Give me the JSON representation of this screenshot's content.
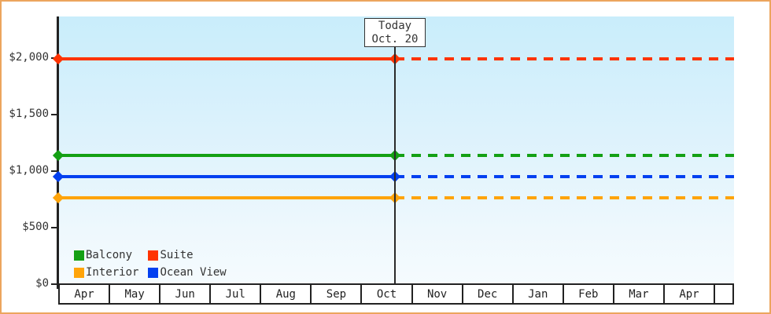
{
  "chart_data": {
    "type": "line",
    "title": "",
    "x_categories": [
      "Apr",
      "May",
      "Jun",
      "Jul",
      "Aug",
      "Sep",
      "Oct",
      "Nov",
      "Dec",
      "Jan",
      "Feb",
      "Mar",
      "Apr"
    ],
    "y_ticks": [
      {
        "label": "$0",
        "value": 0
      },
      {
        "label": "$500",
        "value": 500
      },
      {
        "label": "$1,000",
        "value": 1000
      },
      {
        "label": "$1,500",
        "value": 1500
      },
      {
        "label": "$2,000",
        "value": 2000
      }
    ],
    "ylim": [
      0,
      2360
    ],
    "grid": "off",
    "series": [
      {
        "name": "Suite",
        "color": "#ff3300",
        "value": 1990,
        "style": "solid-then-dashed"
      },
      {
        "name": "Balcony",
        "color": "#14a014",
        "value": 1140,
        "style": "solid-then-dashed"
      },
      {
        "name": "Ocean View",
        "color": "#0340f0",
        "value": 950,
        "style": "solid-then-dashed"
      },
      {
        "name": "Interior",
        "color": "#ffa40a",
        "value": 765,
        "style": "solid-then-dashed"
      }
    ],
    "today": {
      "line1": "Today",
      "line2": "Oct. 20"
    },
    "legend": {
      "position": "bottom-left",
      "items": [
        {
          "label": "Balcony",
          "color": "#14a014"
        },
        {
          "label": "Suite",
          "color": "#ff3300"
        },
        {
          "label": "Interior",
          "color": "#ffa40a"
        },
        {
          "label": "Ocean View",
          "color": "#0340f0"
        }
      ]
    }
  },
  "colors": {
    "frame_border": "#eca55e",
    "axis": "#222222",
    "plot_bg_top": "#c9edfb",
    "plot_bg_bottom": "#f5fbfe",
    "text": "#333333"
  }
}
